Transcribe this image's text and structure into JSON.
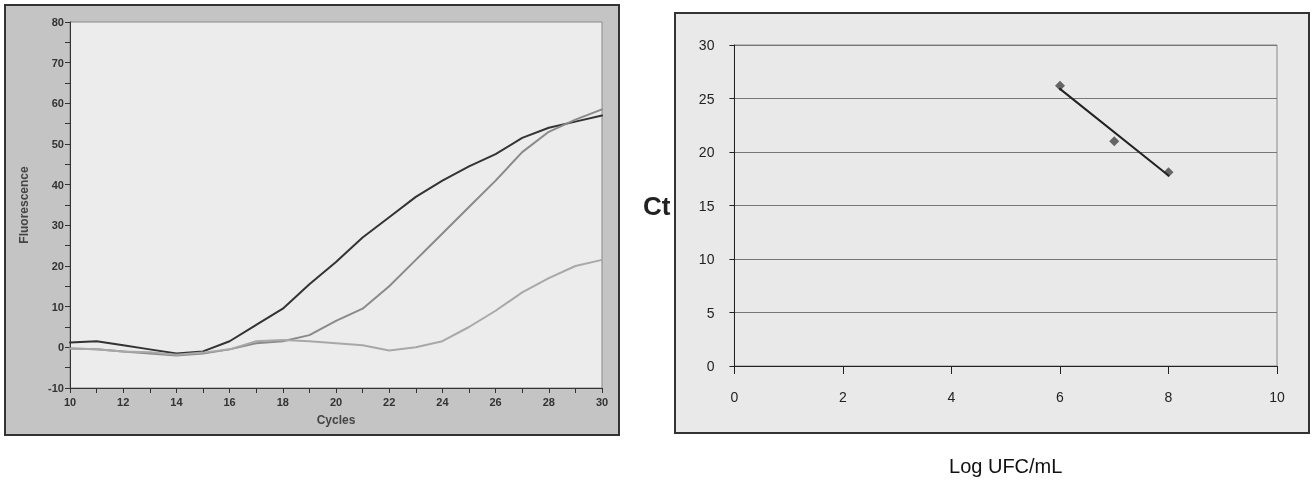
{
  "chart_data": [
    {
      "type": "line",
      "xlabel": "Cycles",
      "ylabel": "Fluorescence",
      "x": [
        10,
        11,
        12,
        13,
        14,
        15,
        16,
        17,
        18,
        19,
        20,
        21,
        22,
        23,
        24,
        25,
        26,
        27,
        28,
        29,
        30
      ],
      "series": [
        {
          "color": "#333333",
          "values": [
            1.2,
            1.5,
            0.5,
            -0.5,
            -1.5,
            -1,
            1.5,
            5.5,
            9.5,
            15.5,
            21,
            27,
            32,
            37,
            41,
            44.5,
            47.5,
            51.5,
            54,
            55.5,
            57
          ]
        },
        {
          "color": "#8a8a8a",
          "values": [
            -0.3,
            -0.5,
            -1,
            -1.5,
            -2,
            -1.5,
            -0.5,
            1,
            1.5,
            3,
            6.5,
            9.5,
            15,
            21.5,
            28,
            34.5,
            41,
            48,
            53,
            56,
            58.5
          ]
        },
        {
          "color": "#a8a8a8",
          "values": [
            -0.3,
            -0.5,
            -1,
            -1.2,
            -1.8,
            -1.3,
            -0.5,
            1.5,
            1.8,
            1.5,
            1,
            0.5,
            -0.8,
            0,
            1.5,
            5,
            9,
            13.5,
            17,
            20,
            21.5
          ]
        }
      ],
      "xlim": [
        10,
        30
      ],
      "xticks": [
        10,
        {
          "value": 11,
          "label": null
        },
        12,
        {
          "value": 13,
          "label": null
        },
        14,
        {
          "value": 15,
          "label": null
        },
        16,
        {
          "value": 17,
          "label": null
        },
        18,
        {
          "value": 19,
          "label": null
        },
        20,
        {
          "value": 21,
          "label": null
        },
        22,
        {
          "value": 23,
          "label": null
        },
        24,
        {
          "value": 25,
          "label": null
        },
        26,
        {
          "value": 27,
          "label": null
        },
        28,
        {
          "value": 29,
          "label": null
        },
        30
      ],
      "ylim": [
        -10,
        80
      ],
      "yticks": [
        -10,
        {
          "value": -5,
          "label": null
        },
        0,
        {
          "value": 5,
          "label": null
        },
        10,
        {
          "value": 15,
          "label": null
        },
        20,
        {
          "value": 25,
          "label": null
        },
        30,
        {
          "value": 35,
          "label": null
        },
        40,
        {
          "value": 45,
          "label": null
        },
        50,
        {
          "value": 55,
          "label": null
        },
        60,
        {
          "value": 65,
          "label": null
        },
        70,
        {
          "value": 75,
          "label": null
        },
        80
      ],
      "grid": false,
      "marker": "none",
      "line_style": "solid"
    },
    {
      "type": "scatter",
      "xlabel": "Log UFC/mL",
      "ylabel": "Ct",
      "series": [
        {
          "type": "scatter",
          "color": "#444444",
          "x": [
            6,
            7,
            8
          ],
          "values": [
            26.2,
            21,
            18.1
          ]
        },
        {
          "type": "line",
          "color": "#222222",
          "marker": "none",
          "x": [
            6,
            8
          ],
          "values": [
            25.9,
            17.8
          ]
        }
      ],
      "xlim": [
        0,
        10
      ],
      "xticks": [
        0,
        2,
        4,
        6,
        8,
        10
      ],
      "ylim": [
        0,
        30
      ],
      "yticks": [
        0,
        5,
        10,
        15,
        20,
        25,
        30
      ],
      "grid": "y",
      "marker": "diamond"
    }
  ]
}
